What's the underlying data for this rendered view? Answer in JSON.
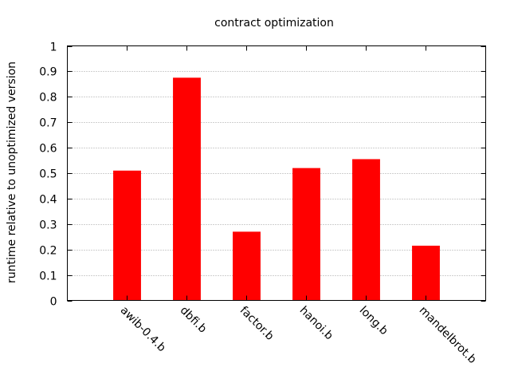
{
  "chart_data": {
    "type": "bar",
    "title": "contract optimization",
    "xlabel": "",
    "ylabel": "runtime relative to unoptimized version",
    "categories": [
      "awib-0.4.b",
      "dbfi.b",
      "factor.b",
      "hanoi.b",
      "long.b",
      "mandelbrot.b"
    ],
    "values": [
      0.51,
      0.875,
      0.27,
      0.52,
      0.555,
      0.215
    ],
    "ylim": [
      0,
      1
    ],
    "yticks": [
      "0",
      "0.1",
      "0.2",
      "0.3",
      "0.4",
      "0.5",
      "0.6",
      "0.7",
      "0.8",
      "0.9",
      "1"
    ],
    "grid": true,
    "legend": false,
    "bar_color": "#ff0000",
    "grid_color": "#a0a0a0"
  }
}
